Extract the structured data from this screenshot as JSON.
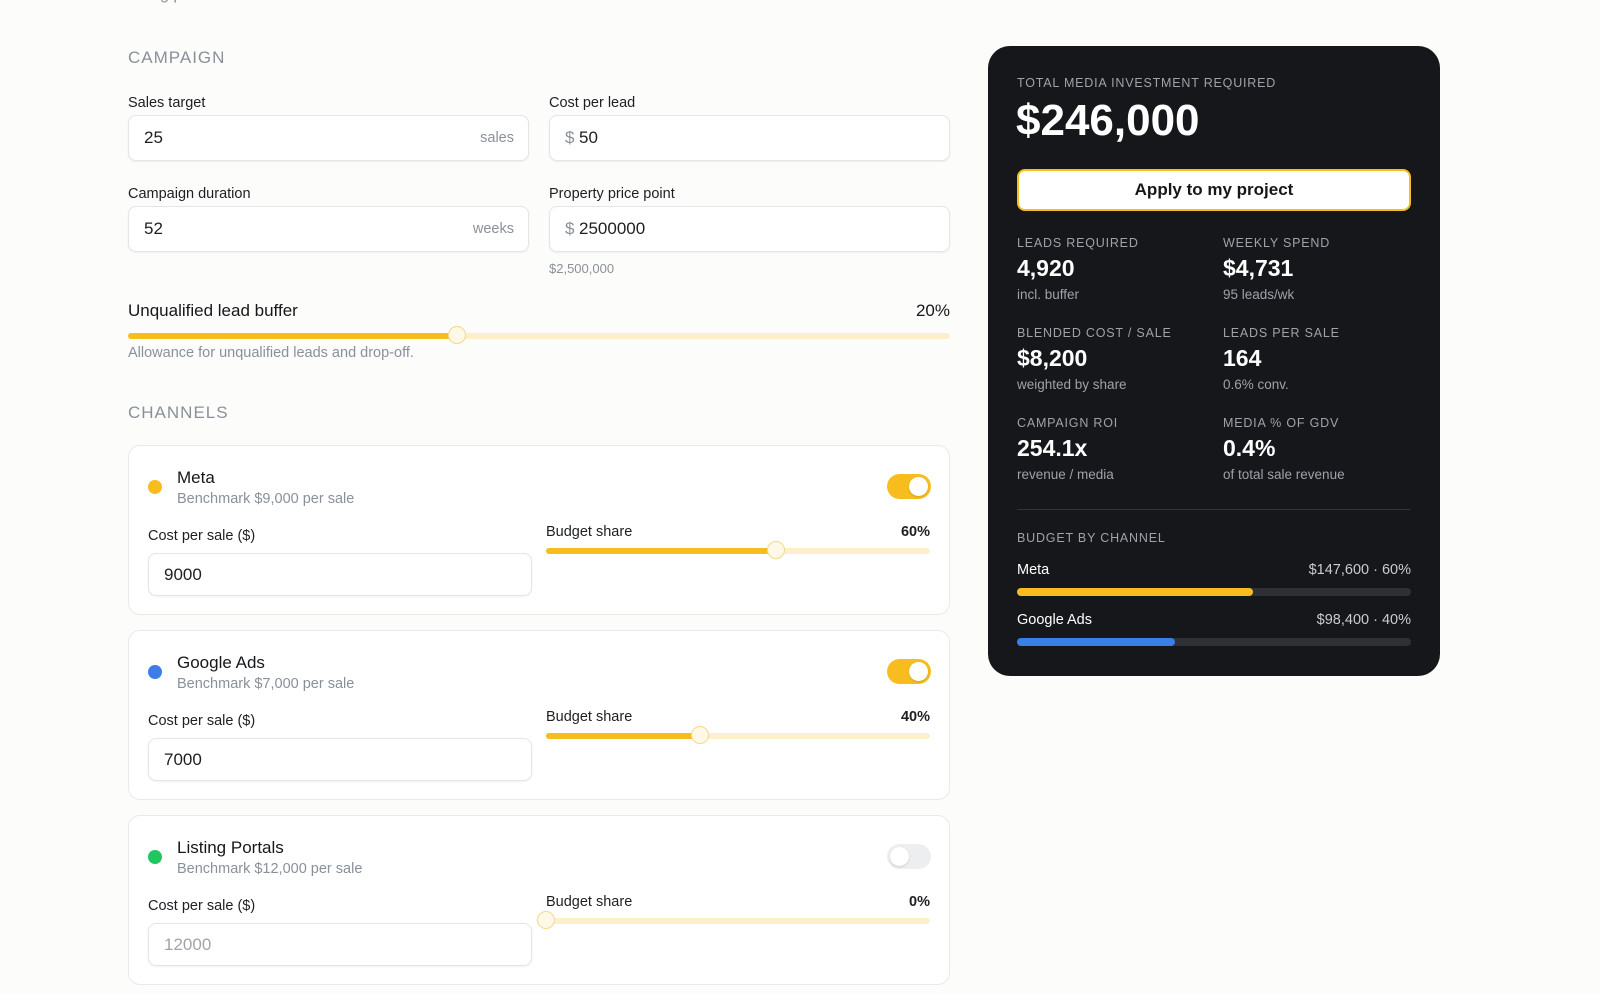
{
  "intro_fragment": "listing portals.",
  "campaign": {
    "heading": "CAMPAIGN",
    "fields": [
      {
        "label": "Sales target",
        "value": "25",
        "suffix": "sales"
      },
      {
        "label": "Cost per lead",
        "prefix": "$",
        "value": "50"
      },
      {
        "label": "Campaign duration",
        "value": "52",
        "suffix": "weeks"
      },
      {
        "label": "Property price point",
        "prefix": "$",
        "value": "2500000",
        "hint": "$2,500,000"
      }
    ],
    "buffer": {
      "label": "Unqualified lead buffer",
      "value": 20,
      "value_label": "20%",
      "range": [
        0,
        50
      ],
      "hint": "Allowance for unqualified leads and drop-off."
    }
  },
  "channels": {
    "heading": "CHANNELS",
    "items": [
      {
        "name": "Meta",
        "color": "#f7bd1f",
        "benchmark": "Benchmark $9,000 per sale",
        "enabled": true,
        "cost_label": "Cost per sale ($)",
        "cost": "9000",
        "share_label": "Budget share",
        "share": 60,
        "share_value_label": "60%",
        "range": [
          0,
          100
        ]
      },
      {
        "name": "Google Ads",
        "color": "#3b7de9",
        "benchmark": "Benchmark $7,000 per sale",
        "enabled": true,
        "cost_label": "Cost per sale ($)",
        "cost": "7000",
        "share_label": "Budget share",
        "share": 40,
        "share_value_label": "40%",
        "range": [
          0,
          100
        ]
      },
      {
        "name": "Listing Portals",
        "color": "#22c55e",
        "benchmark": "Benchmark $12,000 per sale",
        "enabled": false,
        "cost_label": "Cost per sale ($)",
        "cost": "12000",
        "share_label": "Budget share",
        "share": 0,
        "share_value_label": "0%",
        "range": [
          0,
          100
        ]
      }
    ]
  },
  "summary": {
    "label": "TOTAL MEDIA INVESTMENT REQUIRED",
    "total": "$246,000",
    "button": "Apply to my project",
    "stats": [
      {
        "label": "LEADS REQUIRED",
        "value": "4,920",
        "note": "incl. buffer"
      },
      {
        "label": "WEEKLY SPEND",
        "value": "$4,731",
        "note": "95 leads/wk"
      },
      {
        "label": "BLENDED COST / SALE",
        "value": "$8,200",
        "note": "weighted by share"
      },
      {
        "label": "LEADS PER SALE",
        "value": "164",
        "note": "0.6% conv."
      },
      {
        "label": "CAMPAIGN ROI",
        "value": "254.1x",
        "note": "revenue / media"
      },
      {
        "label": "MEDIA % OF GDV",
        "value": "0.4%",
        "note": "of total sale revenue"
      }
    ],
    "budget_heading": "BUDGET BY CHANNEL",
    "budget": [
      {
        "name": "Meta",
        "label": "$147,600 · 60%",
        "share": 60,
        "color": "#f7bd1f"
      },
      {
        "name": "Google Ads",
        "label": "$98,400 · 40%",
        "share": 40,
        "color": "#3b7de9"
      }
    ],
    "budget_range": [
      0,
      100
    ]
  }
}
